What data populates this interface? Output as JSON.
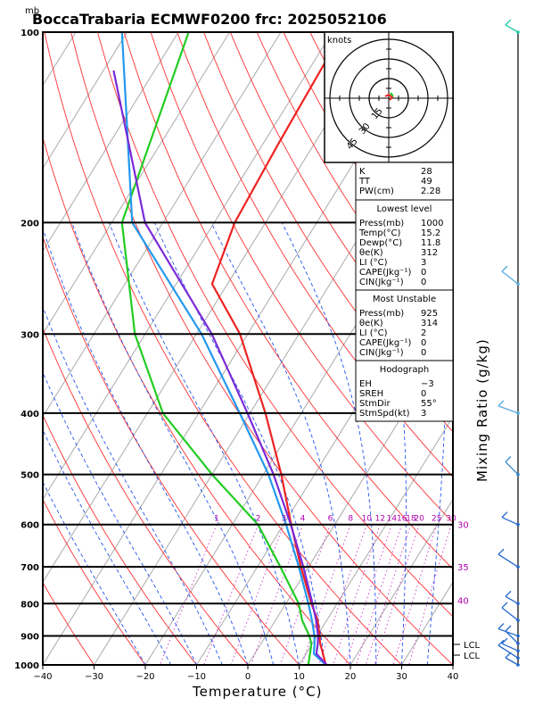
{
  "title": "BoccaTrabaria ECMWF0200 frc: 2025052106",
  "chart_data": {
    "type": "skew-t",
    "title": "BoccaTrabaria ECMWF0200 frc: 2025052106",
    "pressure_unit": "mb",
    "xlabel": "Temperature (°C)",
    "right_label": "Mixing Ratio (g/kg)",
    "x_ticks": [
      "−40",
      "−30",
      "−20",
      "−10",
      "0",
      "10",
      "20",
      "30",
      "40"
    ],
    "x_tick_values": [
      -40,
      -30,
      -20,
      -10,
      0,
      10,
      20,
      30,
      40
    ],
    "pressure_levels": [
      100,
      200,
      300,
      400,
      500,
      600,
      700,
      800,
      900,
      1000
    ],
    "mixing_ratio_labels": [
      "1",
      "2",
      "3",
      "4",
      "6",
      "8",
      "10",
      "12",
      "14",
      "16",
      "18",
      "20",
      "25",
      "30"
    ],
    "mixing_ratio_values": [
      1,
      2,
      3,
      4,
      6,
      8,
      10,
      12,
      14,
      16,
      18,
      20,
      25,
      30
    ],
    "theta_e_labels": [
      "30",
      "35",
      "40"
    ],
    "theta_e_levels": [
      30,
      35,
      40
    ],
    "lcl_labels": [
      "LCL",
      "LCL"
    ],
    "lcl_pressures": [
      928,
      965
    ],
    "series": [
      {
        "name": "Temperature",
        "color": "#ee2222",
        "p": [
          1000,
          950,
          925,
          900,
          850,
          800,
          700,
          600,
          500,
          400,
          300,
          250,
          200,
          150,
          100
        ],
        "t": [
          15.2,
          12.8,
          11.5,
          10.5,
          8.2,
          5.0,
          -1.5,
          -8.5,
          -16.5,
          -27.0,
          -41.5,
          -53.0,
          -56.0,
          -57.0,
          -58.0
        ]
      },
      {
        "name": "Dewpoint",
        "color": "#22cc22",
        "p": [
          1000,
          950,
          925,
          900,
          850,
          800,
          700,
          600,
          500,
          400,
          300,
          200,
          100
        ],
        "t": [
          11.8,
          10.5,
          9.8,
          8.5,
          5.2,
          2.5,
          -5.5,
          -15.0,
          -30.0,
          -47.0,
          -62.0,
          -78.0,
          -88.0
        ]
      },
      {
        "name": "Parcel",
        "color": "#2299ee",
        "p": [
          1000,
          960,
          930,
          900,
          850,
          800,
          700,
          600,
          500,
          400,
          300,
          200,
          100
        ],
        "t": [
          15.2,
          11.5,
          10.6,
          9.5,
          7.1,
          4.4,
          -1.9,
          -9.5,
          -19.0,
          -32.0,
          -49.0,
          -76.0,
          -101.0
        ]
      },
      {
        "name": "Virtual",
        "color": "#7a2ad8",
        "p": [
          1000,
          960,
          930,
          900,
          850,
          800,
          700,
          600,
          500,
          400,
          300,
          200,
          115
        ],
        "t": [
          15.4,
          12.0,
          11.2,
          10.2,
          7.9,
          5.2,
          -1.0,
          -8.6,
          -18.0,
          -30.5,
          -47.0,
          -73.5,
          -98.0
        ]
      }
    ],
    "isotherm_range": [
      -150,
      50
    ],
    "dry_adiabat_thetas_C": [
      -40,
      -30,
      -20,
      -10,
      0,
      10,
      20,
      30,
      40,
      50,
      60,
      70,
      80,
      90,
      100,
      110,
      120,
      130,
      140,
      150,
      160,
      170,
      180,
      190,
      200
    ],
    "moist_adiabat_start_C": [
      -20,
      -15,
      -10,
      -5,
      0,
      5,
      10,
      15,
      20,
      25,
      30,
      35,
      40
    ],
    "hodograph": {
      "unit": "knots",
      "rings": [
        "15",
        "30",
        "45"
      ]
    },
    "indices": {
      "K": "28",
      "TT": "49",
      "PW(cm)": "2.28"
    },
    "lowest_level": {
      "header": "Lowest level",
      "rows": [
        [
          "Press(mb)",
          "1000"
        ],
        [
          "Temp(°C)",
          "15.2"
        ],
        [
          "Dewp(°C)",
          "11.8"
        ],
        [
          "θe(K)",
          "312"
        ],
        [
          "LI (°C)",
          "3"
        ],
        [
          "CAPE(Jkg⁻¹)",
          "0"
        ],
        [
          "CIN(Jkg⁻¹)",
          "0"
        ]
      ]
    },
    "most_unstable": {
      "header": "Most Unstable",
      "rows": [
        [
          "Press(mb)",
          "925"
        ],
        [
          "θe(K)",
          "314"
        ],
        [
          "LI (°C)",
          "2"
        ],
        [
          "CAPE(Jkg⁻¹)",
          "0"
        ],
        [
          "CIN(Jkg⁻¹)",
          "0"
        ]
      ]
    },
    "hodograph_box": {
      "header": "Hodograph",
      "rows": [
        [
          "EH",
          "−3"
        ],
        [
          "SREH",
          "0"
        ],
        [
          "StmDir",
          "55°"
        ],
        [
          "StmSpd(kt)",
          "3"
        ]
      ]
    },
    "wind_barbs": [
      {
        "p": 100,
        "color": "#22ccaa"
      },
      {
        "p": 250,
        "color": "#55aadd"
      },
      {
        "p": 400,
        "color": "#55aadd"
      },
      {
        "p": 500,
        "color": "#3388cc"
      },
      {
        "p": 600,
        "color": "#2266cc"
      },
      {
        "p": 700,
        "color": "#2266cc"
      },
      {
        "p": 800,
        "color": "#2266cc"
      },
      {
        "p": 850,
        "color": "#2266cc"
      },
      {
        "p": 900,
        "color": "#2266cc"
      },
      {
        "p": 925,
        "color": "#2266cc"
      },
      {
        "p": 950,
        "color": "#2266cc"
      },
      {
        "p": 975,
        "color": "#2266cc"
      },
      {
        "p": 1000,
        "color": "#2266cc"
      }
    ]
  }
}
